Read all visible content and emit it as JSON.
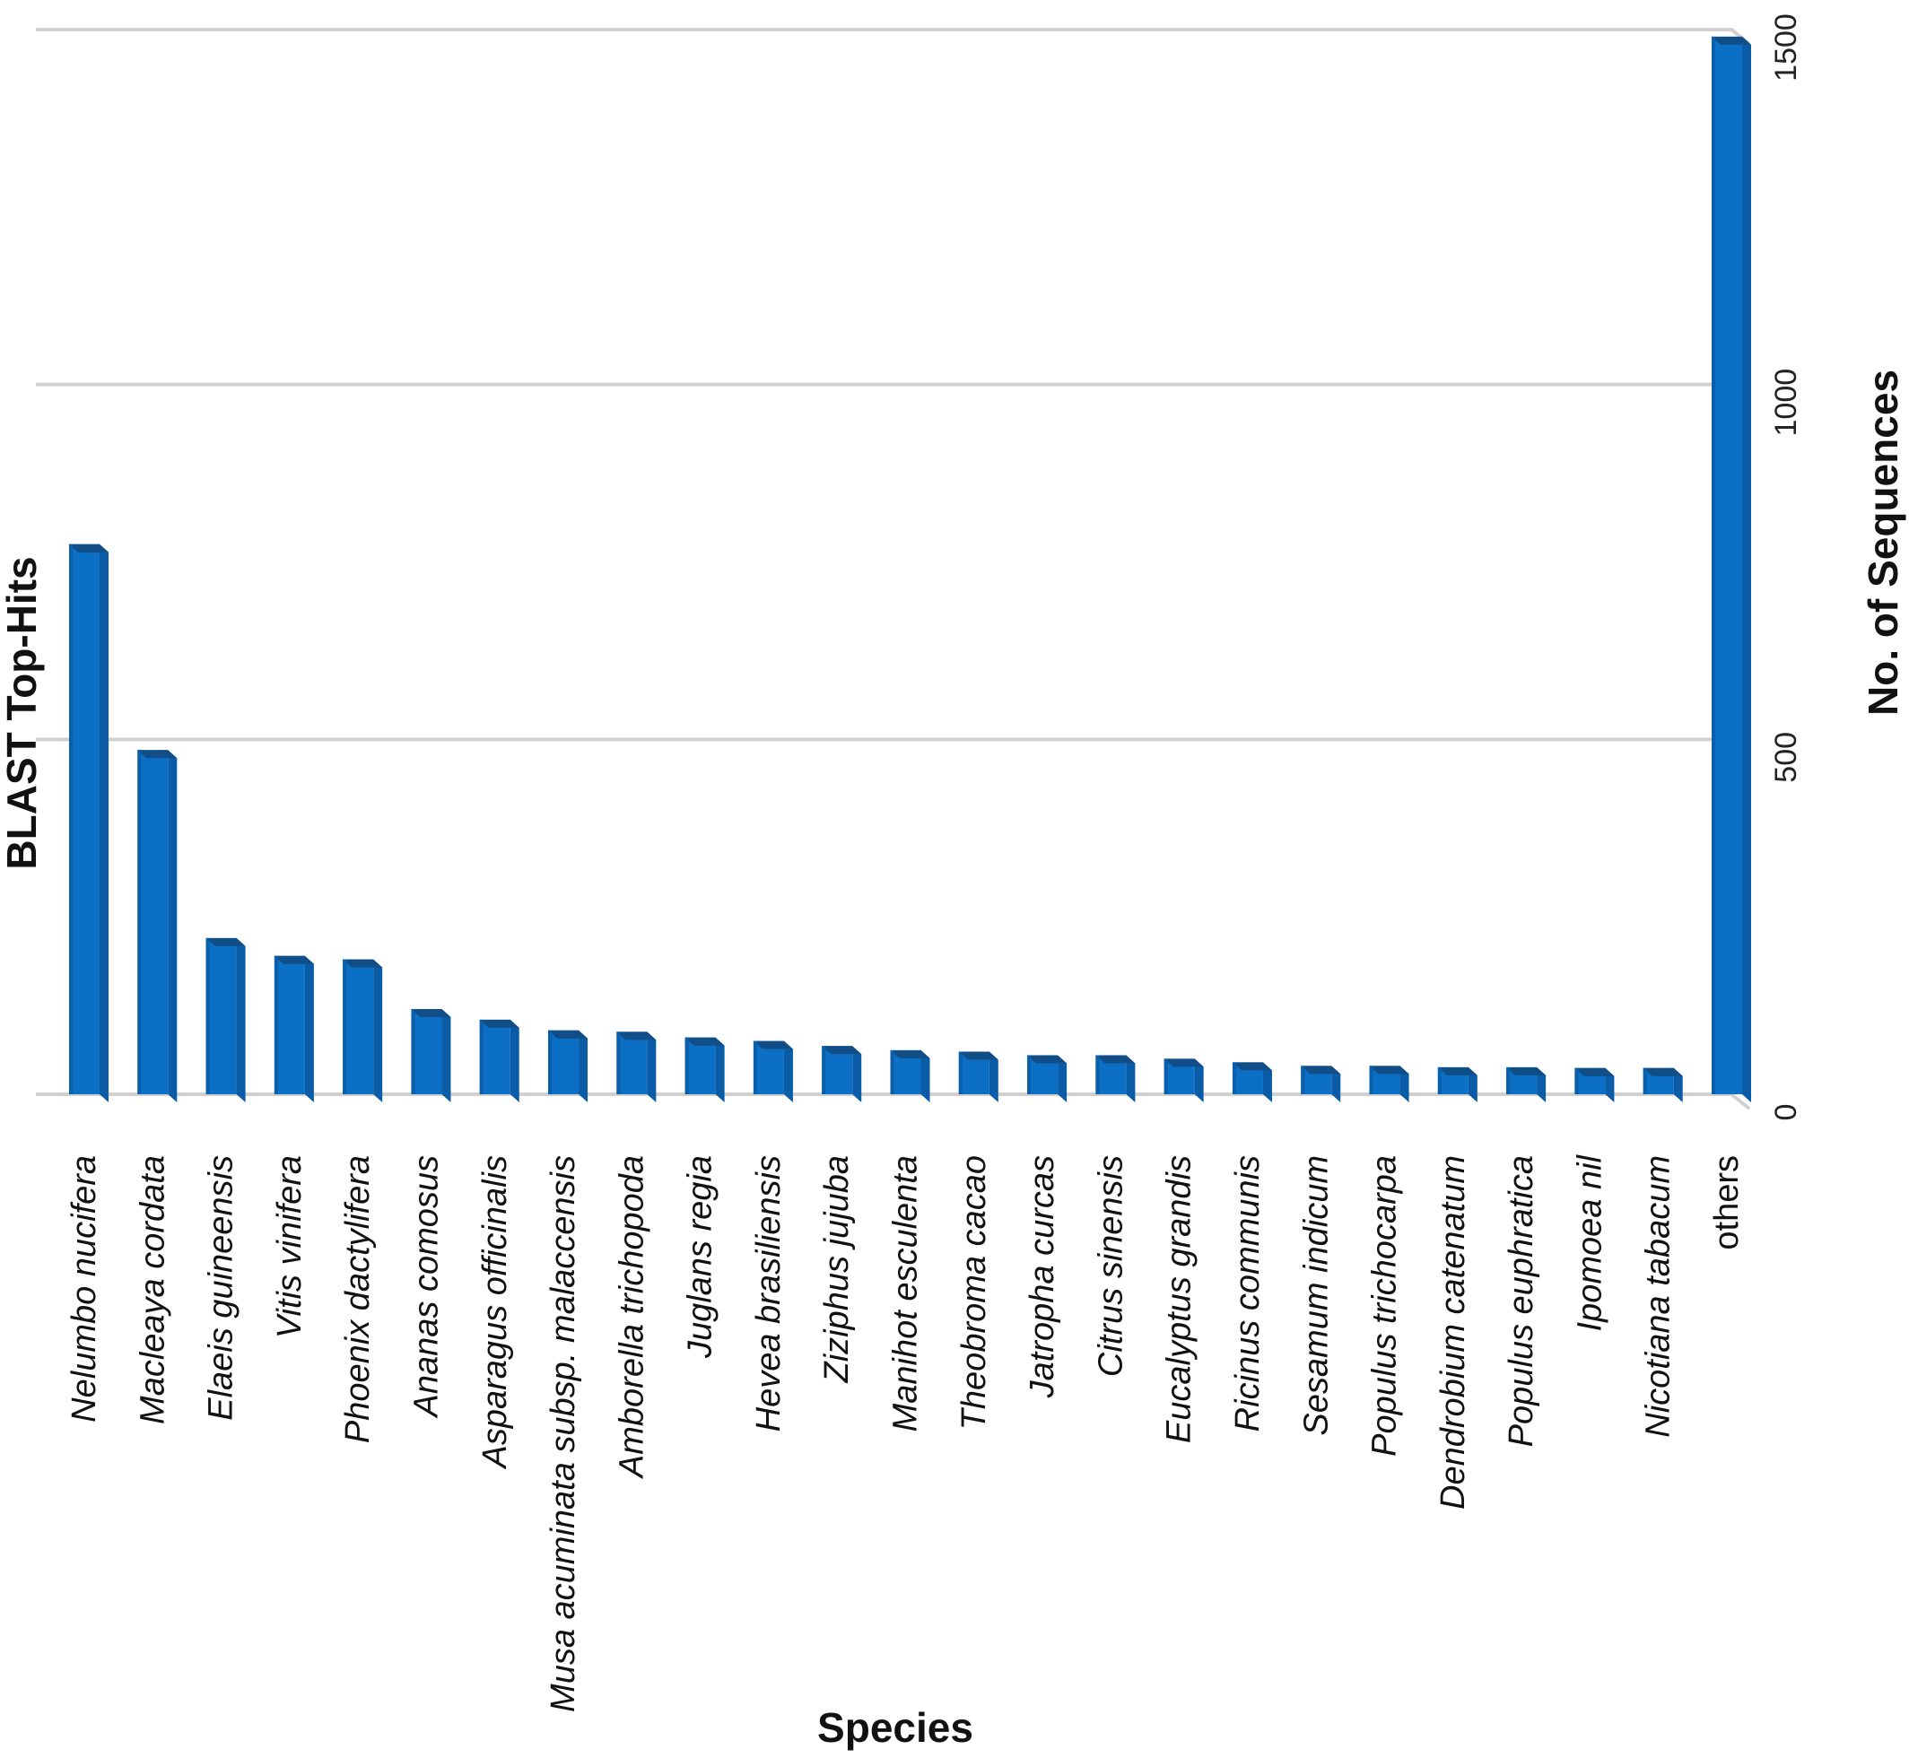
{
  "chart_data": {
    "type": "bar",
    "title": "",
    "left_title": "BLAST Top-Hits",
    "xlabel": "Species",
    "ylabel": "No. of Sequences",
    "ylim": [
      0,
      1500
    ],
    "yticks": [
      0,
      500,
      1000,
      1500
    ],
    "y_axis_position": "right",
    "grid": true,
    "legend": "none",
    "categories": [
      "Nelumbo nucifera",
      "Macleaya cordata",
      "Elaeis guineensis",
      "Vitis vinifera",
      "Phoenix dactylifera",
      "Ananas comosus",
      "Asparagus officinalis",
      "Musa acuminata subsp. malaccensis",
      "Amborella trichopoda",
      "Juglans regia",
      "Hevea brasiliensis",
      "Ziziphus jujuba",
      "Manihot esculenta",
      "Theobroma cacao",
      "Jatropha curcas",
      "Citrus sinensis",
      "Eucalyptus grandis",
      "Ricinus communis",
      "Sesamum indicum",
      "Populus trichocarpa",
      "Dendrobium catenatum",
      "Populus euphratica",
      "Ipomoea nil",
      "Nicotiana tabacum",
      "others"
    ],
    "italic_categories": [
      true,
      true,
      true,
      true,
      true,
      true,
      true,
      true,
      true,
      true,
      true,
      true,
      true,
      true,
      true,
      true,
      true,
      true,
      true,
      true,
      true,
      true,
      true,
      true,
      false
    ],
    "values": [
      775,
      485,
      220,
      195,
      190,
      120,
      105,
      90,
      88,
      80,
      75,
      68,
      62,
      60,
      55,
      55,
      50,
      45,
      40,
      40,
      38,
      38,
      37,
      37,
      1490
    ],
    "colors": {
      "bar_front": "#0b6fc6",
      "bar_top": "#114d86",
      "bar_side": "#0b5ca6",
      "grid": "#d0d0d0"
    }
  }
}
